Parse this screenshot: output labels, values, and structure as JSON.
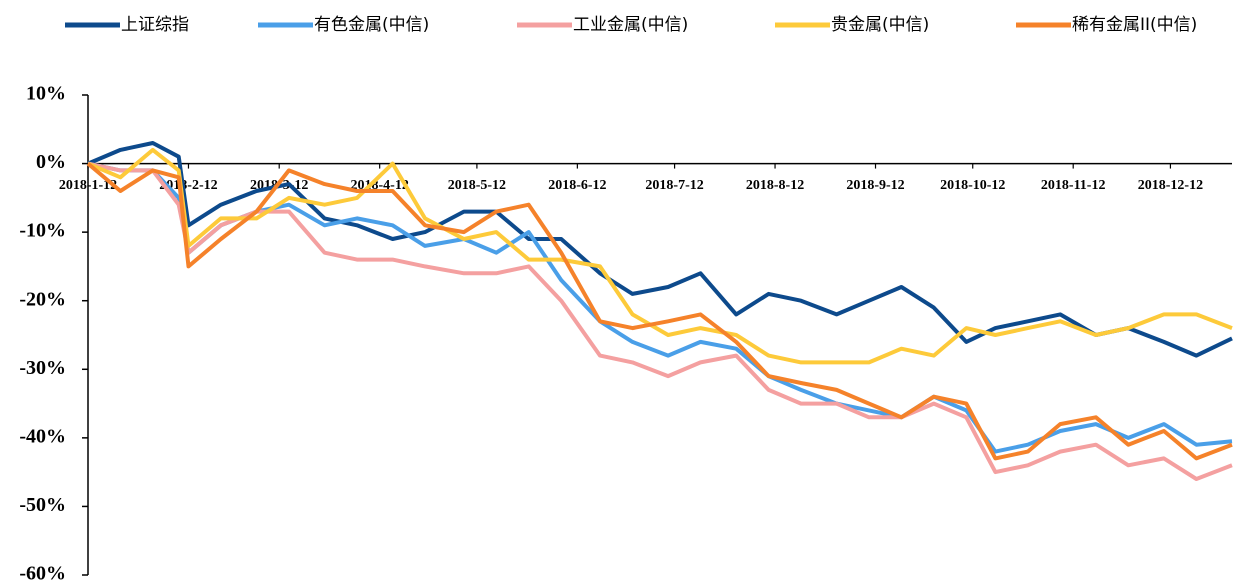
{
  "chart_data": {
    "type": "line",
    "x": [
      "2018-1-12",
      "2018-1-22",
      "2018-2-1",
      "2018-2-9",
      "2018-2-12",
      "2018-2-22",
      "2018-3-5",
      "2018-3-15",
      "2018-3-26",
      "2018-4-5",
      "2018-4-16",
      "2018-4-26",
      "2018-5-8",
      "2018-5-18",
      "2018-5-28",
      "2018-6-7",
      "2018-6-19",
      "2018-6-29",
      "2018-7-10",
      "2018-7-20",
      "2018-7-31",
      "2018-8-10",
      "2018-8-20",
      "2018-8-31",
      "2018-9-10",
      "2018-9-20",
      "2018-9-30",
      "2018-10-10",
      "2018-10-19",
      "2018-10-29",
      "2018-11-8",
      "2018-11-19",
      "2018-11-29",
      "2018-12-10",
      "2018-12-20",
      "2018-12-31"
    ],
    "series": [
      {
        "name": "上证综指",
        "color": "#0d4a8c",
        "values": [
          0,
          2,
          3,
          1,
          -9,
          -6,
          -4,
          -3,
          -8,
          -9,
          -11,
          -10,
          -7,
          -7,
          -11,
          -11,
          -16,
          -19,
          -18,
          -16,
          -22,
          -19,
          -20,
          -22,
          -20,
          -18,
          -21,
          -26,
          -24,
          -23,
          -22,
          -25,
          -24,
          -26,
          -28,
          -25.5
        ]
      },
      {
        "name": "有色金属(中信)",
        "color": "#4a9fe8",
        "values": [
          0,
          -1,
          -1,
          -5,
          -13,
          -9,
          -7,
          -6,
          -9,
          -8,
          -9,
          -12,
          -11,
          -13,
          -10,
          -17,
          -23,
          -26,
          -28,
          -26,
          -27,
          -31,
          -33,
          -35,
          -36,
          -37,
          -34,
          -36,
          -42,
          -41,
          -39,
          -38,
          -40,
          -38,
          -41,
          -40.5
        ]
      },
      {
        "name": "工业金属(中信)",
        "color": "#f4a0a0",
        "values": [
          0,
          -1,
          -1,
          -6,
          -13,
          -9,
          -7,
          -7,
          -13,
          -14,
          -14,
          -15,
          -16,
          -16,
          -15,
          -20,
          -28,
          -29,
          -31,
          -29,
          -28,
          -33,
          -35,
          -35,
          -37,
          -37,
          -35,
          -37,
          -45,
          -44,
          -42,
          -41,
          -44,
          -43,
          -46,
          -44
        ]
      },
      {
        "name": "贵金属(中信)",
        "color": "#fdca3a",
        "values": [
          0,
          -2,
          2,
          -1,
          -12,
          -8,
          -8,
          -5,
          -6,
          -5,
          0,
          -8,
          -11,
          -10,
          -14,
          -14,
          -15,
          -22,
          -25,
          -24,
          -25,
          -28,
          -29,
          -29,
          -29,
          -27,
          -28,
          -24,
          -25,
          -24,
          -23,
          -25,
          -24,
          -22,
          -22,
          -24
        ]
      },
      {
        "name": "稀有金属II(中信)",
        "color": "#f5822a",
        "values": [
          0,
          -4,
          -1,
          -2,
          -15,
          -11,
          -7,
          -1,
          -3,
          -4,
          -4,
          -9,
          -10,
          -7,
          -6,
          -13,
          -23,
          -24,
          -23,
          -22,
          -26,
          -31,
          -32,
          -33,
          -35,
          -37,
          -34,
          -35,
          -43,
          -42,
          -38,
          -37,
          -41,
          -39,
          -43,
          -41
        ]
      }
    ],
    "xlim": [
      "2018-1-12",
      "2018-12-31"
    ],
    "xticks": [
      "2018-1-12",
      "2018-2-12",
      "2018-3-12",
      "2018-4-12",
      "2018-5-12",
      "2018-6-12",
      "2018-7-12",
      "2018-8-12",
      "2018-9-12",
      "2018-10-12",
      "2018-11-12",
      "2018-12-12"
    ],
    "ylim": [
      -60,
      10
    ],
    "yticks": [
      {
        "value": 10,
        "label": "10%"
      },
      {
        "value": 0,
        "label": "0%"
      },
      {
        "value": -10,
        "label": "-10%"
      },
      {
        "value": -20,
        "label": "-20%"
      },
      {
        "value": -30,
        "label": "-30%"
      },
      {
        "value": -40,
        "label": "-40%"
      },
      {
        "value": -50,
        "label": "-50%"
      },
      {
        "value": -60,
        "label": "-60%"
      }
    ],
    "legend": "top"
  }
}
